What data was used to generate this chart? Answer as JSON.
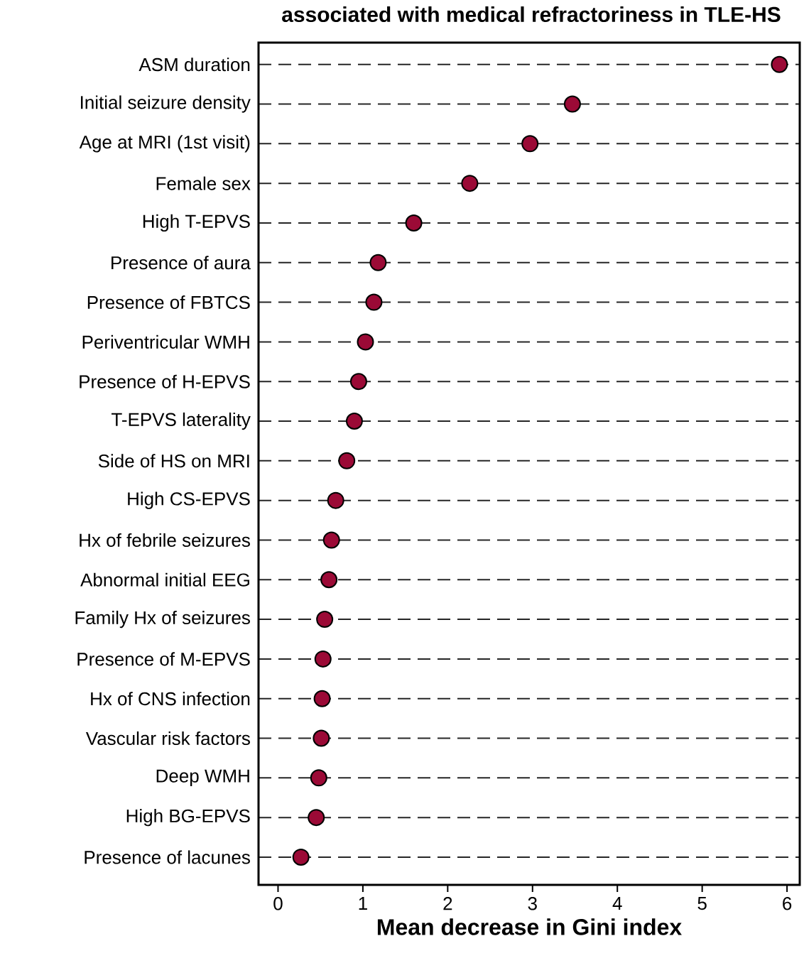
{
  "chart_data": {
    "type": "scatter",
    "orientation": "horizontal",
    "title": "associated with medical refractoriness in TLE-HS",
    "xlabel": "Mean decrease in Gini index",
    "categories": [
      "ASM duration",
      "Initial seizure density",
      "Age at MRI (1st visit)",
      "Female sex",
      "High T-EPVS",
      "Presence of aura",
      "Presence of FBTCS",
      "Periventricular WMH",
      "Presence of H-EPVS",
      "T-EPVS laterality",
      "Side of HS on MRI",
      "High CS-EPVS",
      "Hx of febrile seizures",
      "Abnormal initial EEG",
      "Family Hx of seizures",
      "Presence of M-EPVS",
      "Hx of CNS infection",
      "Vascular risk factors",
      "Deep WMH",
      "High BG-EPVS",
      "Presence of lacunes"
    ],
    "values": [
      5.91,
      3.47,
      2.97,
      2.26,
      1.6,
      1.18,
      1.13,
      1.03,
      0.95,
      0.9,
      0.81,
      0.68,
      0.63,
      0.6,
      0.55,
      0.53,
      0.52,
      0.51,
      0.48,
      0.45,
      0.27
    ],
    "color": "#9b0a36",
    "marker": "circle",
    "grid": "y",
    "xlim": [
      -0.23,
      6.15
    ],
    "xticks": [
      0,
      1,
      2,
      3,
      4,
      5,
      6
    ]
  }
}
